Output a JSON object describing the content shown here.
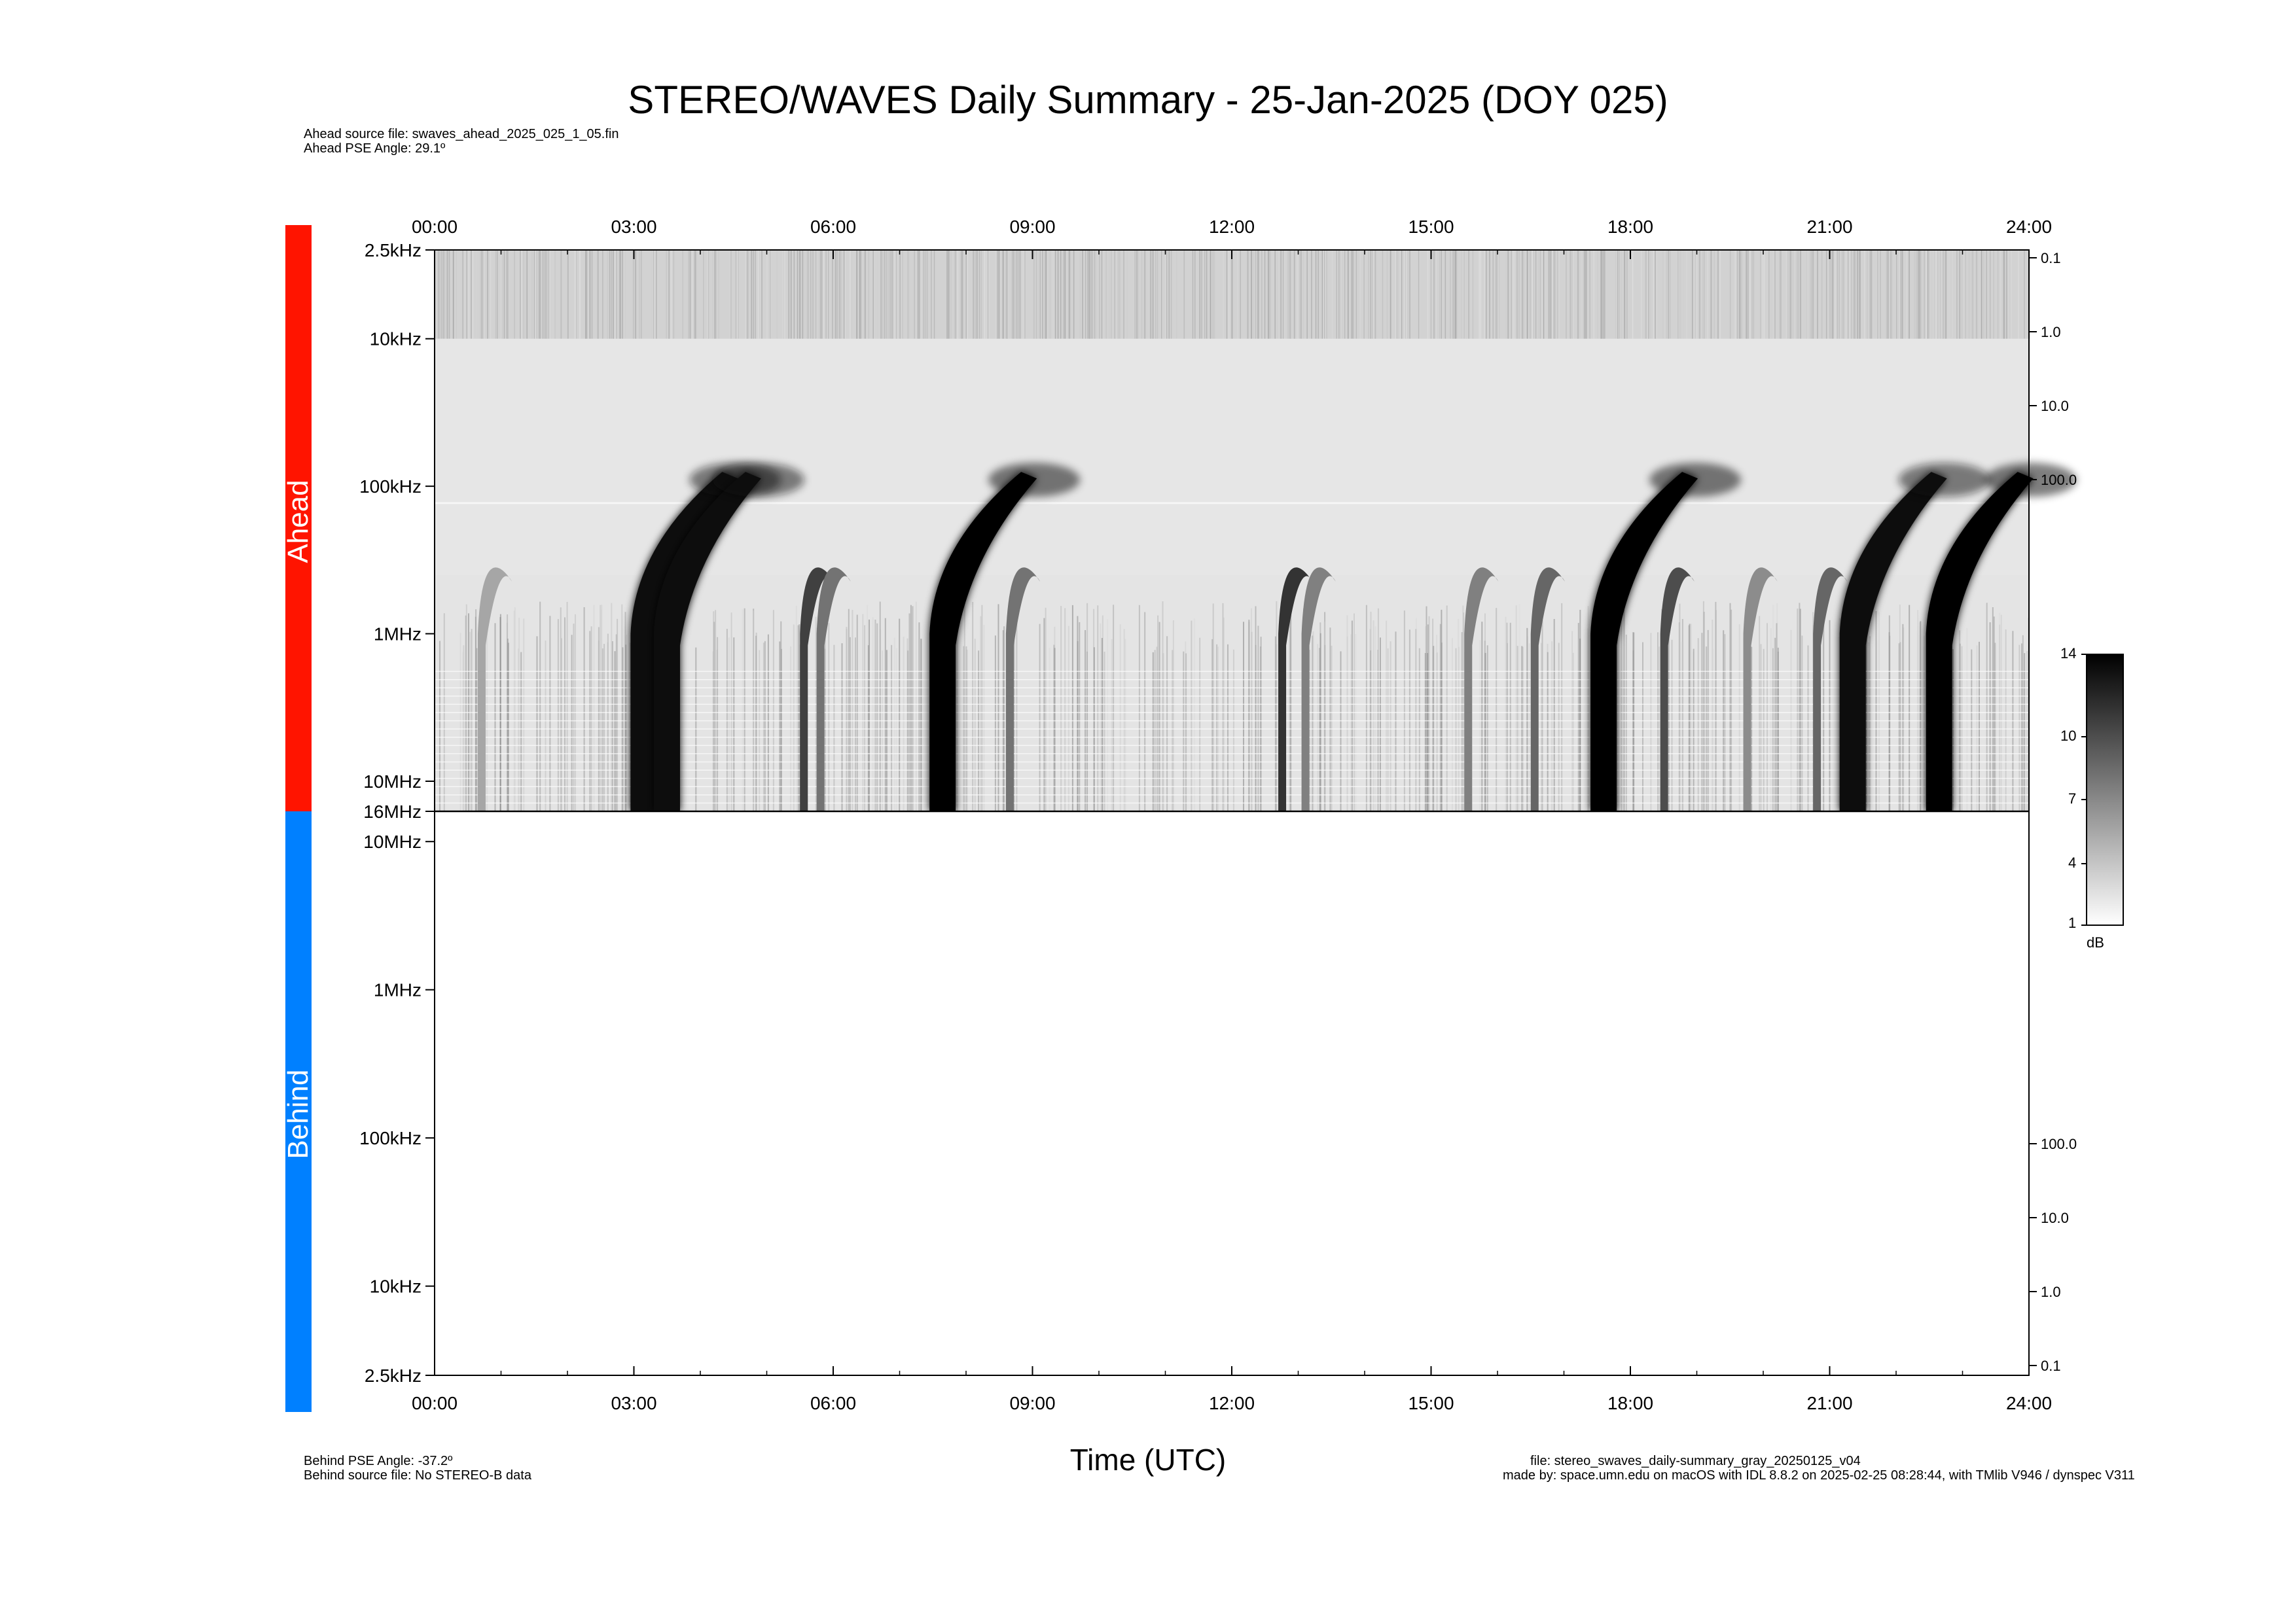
{
  "title": "STEREO/WAVES Daily Summary - 25-Jan-2025 (DOY 025)",
  "header_info": {
    "ahead_source_file": "Ahead source file: swaves_ahead_2025_025_1_05.fin",
    "ahead_pse_angle": "Ahead PSE Angle:   29.1º"
  },
  "footer_info": {
    "behind_pse_angle": "Behind PSE Angle:  -37.2º",
    "behind_source_file": "Behind source file: No STEREO-B data",
    "file_name": "file: stereo_swaves_daily-summary_gray_20250125_v04",
    "made_by": "made by: space.umn.edu on macOS with IDL 8.8.2 on 2025-02-25 08:28:44, with TMlib V946 / dynspec V311"
  },
  "panel_labels": {
    "ahead": "Ahead",
    "behind": "Behind"
  },
  "colors": {
    "ahead": "#ff1400",
    "behind": "#0080ff",
    "axis": "#000000"
  },
  "xlabel": "Time (UTC)",
  "chart_data": [
    {
      "type": "heatmap",
      "panel": "Ahead",
      "x_ticks": [
        "00:00",
        "03:00",
        "06:00",
        "09:00",
        "12:00",
        "15:00",
        "18:00",
        "21:00",
        "24:00"
      ],
      "xlim_hours": [
        0,
        24
      ],
      "y_scale": "log",
      "y_ticks_left": [
        "2.5kHz",
        "10kHz",
        "100kHz",
        "1MHz",
        "10MHz",
        "16MHz"
      ],
      "y_ticks_right": [
        "0.1",
        "1.0",
        "10.0",
        "100.0"
      ],
      "ylim_hz": [
        2500,
        16000000
      ],
      "colormap": "gray",
      "bursts": [
        {
          "start_h": 0.65,
          "intensity": 0.35
        },
        {
          "start_h": 2.95,
          "intensity": 0.95
        },
        {
          "start_h": 3.3,
          "intensity": 0.95
        },
        {
          "start_h": 5.5,
          "intensity": 0.75
        },
        {
          "start_h": 5.75,
          "intensity": 0.55
        },
        {
          "start_h": 7.45,
          "intensity": 1.0
        },
        {
          "start_h": 8.6,
          "intensity": 0.55
        },
        {
          "start_h": 12.7,
          "intensity": 0.8
        },
        {
          "start_h": 13.05,
          "intensity": 0.5
        },
        {
          "start_h": 15.5,
          "intensity": 0.5
        },
        {
          "start_h": 16.5,
          "intensity": 0.6
        },
        {
          "start_h": 17.4,
          "intensity": 1.0
        },
        {
          "start_h": 18.45,
          "intensity": 0.7
        },
        {
          "start_h": 19.7,
          "intensity": 0.45
        },
        {
          "start_h": 20.75,
          "intensity": 0.6
        },
        {
          "start_h": 21.15,
          "intensity": 0.95
        },
        {
          "start_h": 22.45,
          "intensity": 1.0
        }
      ]
    },
    {
      "type": "heatmap",
      "panel": "Behind",
      "x_ticks": [
        "00:00",
        "03:00",
        "06:00",
        "09:00",
        "12:00",
        "15:00",
        "18:00",
        "21:00",
        "24:00"
      ],
      "xlim_hours": [
        0,
        24
      ],
      "y_scale": "log",
      "y_ticks_left": [
        "10MHz",
        "1MHz",
        "100kHz",
        "10kHz",
        "2.5kHz"
      ],
      "y_ticks_right": [
        "100.0",
        "10.0",
        "1.0",
        "0.1"
      ],
      "ylim_hz": [
        2500,
        16000000
      ],
      "colormap": "gray",
      "bursts": []
    }
  ],
  "colorbar": {
    "ticks": [
      "14",
      "10",
      "7",
      "4",
      "1"
    ],
    "unit": "dB",
    "range": [
      1,
      14
    ]
  }
}
